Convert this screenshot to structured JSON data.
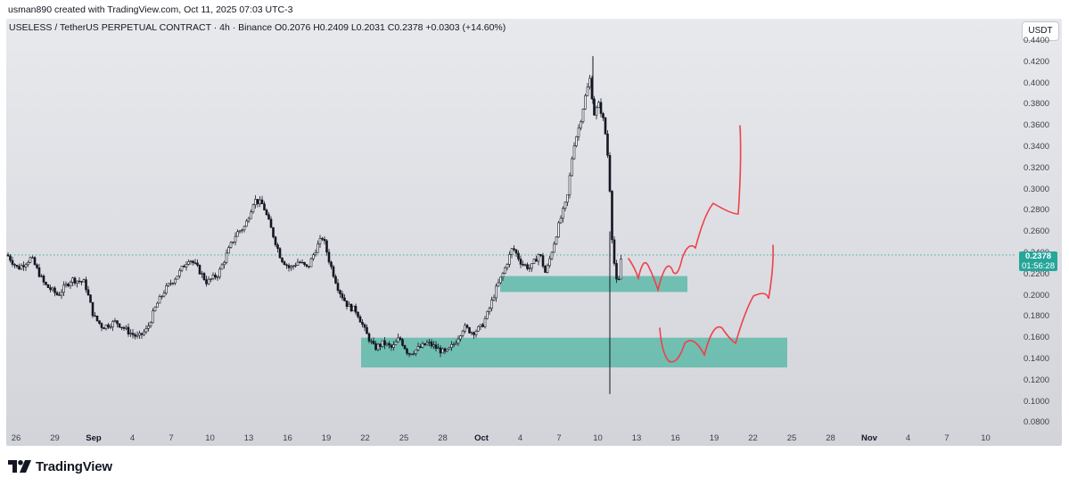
{
  "header": {
    "author_line": "usman890 created with TradingView.com, Oct 11, 2025 07:03 UTC-3"
  },
  "legend": {
    "symbol_line": "USELESS / TetherUS PERPETUAL CONTRACT · 4h · Binance",
    "open": "O0.2076",
    "high": "H0.2409",
    "low": "L0.2031",
    "close": "C0.2378",
    "change": "+0.0303 (+14.60%)"
  },
  "currency_button": "USDT",
  "price_axis": [
    "0.4400",
    "0.4200",
    "0.4000",
    "0.3800",
    "0.3600",
    "0.3400",
    "0.3200",
    "0.3000",
    "0.2800",
    "0.2600",
    "0.2400",
    "0.2200",
    "0.2000",
    "0.1800",
    "0.1600",
    "0.1400",
    "0.1200",
    "0.1000",
    "0.0800"
  ],
  "time_axis": [
    {
      "label": "26",
      "bold": false
    },
    {
      "label": "29",
      "bold": false
    },
    {
      "label": "Sep",
      "bold": true
    },
    {
      "label": "4",
      "bold": false
    },
    {
      "label": "7",
      "bold": false
    },
    {
      "label": "10",
      "bold": false
    },
    {
      "label": "13",
      "bold": false
    },
    {
      "label": "16",
      "bold": false
    },
    {
      "label": "19",
      "bold": false
    },
    {
      "label": "22",
      "bold": false
    },
    {
      "label": "25",
      "bold": false
    },
    {
      "label": "28",
      "bold": false
    },
    {
      "label": "Oct",
      "bold": true
    },
    {
      "label": "4",
      "bold": false
    },
    {
      "label": "7",
      "bold": false
    },
    {
      "label": "10",
      "bold": false
    },
    {
      "label": "13",
      "bold": false
    },
    {
      "label": "16",
      "bold": false
    },
    {
      "label": "19",
      "bold": false
    },
    {
      "label": "22",
      "bold": false
    },
    {
      "label": "25",
      "bold": false
    },
    {
      "label": "28",
      "bold": false
    },
    {
      "label": "Nov",
      "bold": true
    },
    {
      "label": "4",
      "bold": false
    },
    {
      "label": "7",
      "bold": false
    },
    {
      "label": "10",
      "bold": false
    }
  ],
  "last_price": {
    "value": "0.2378",
    "countdown": "01:56:28"
  },
  "footer": {
    "brand": "TradingView"
  },
  "colors": {
    "candle": "#131722",
    "zone": "#4db6a2",
    "projection": "#f0404a",
    "price_tag": "#26a69a"
  }
}
